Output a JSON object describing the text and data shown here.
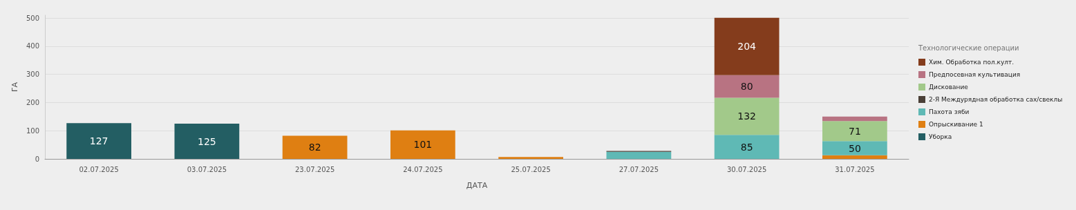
{
  "chart_data": {
    "type": "bar",
    "stacked": true,
    "xlabel": "ДАТА",
    "ylabel": "ГА",
    "legend_title": "Технологические операции",
    "categories": [
      "02.07.2025",
      "03.07.2025",
      "23.07.2025",
      "24.07.2025",
      "25.07.2025",
      "27.07.2025",
      "30.07.2025",
      "31.07.2025"
    ],
    "series": [
      {
        "name": "Уборка",
        "color": "#235e63",
        "values": [
          127,
          125,
          null,
          null,
          null,
          null,
          null,
          null
        ],
        "value_labels": [
          "127",
          "125",
          null,
          null,
          null,
          null,
          null,
          null
        ]
      },
      {
        "name": "Опрыскивание 1",
        "color": "#df7f12",
        "values": [
          null,
          null,
          82,
          101,
          7,
          null,
          null,
          13
        ],
        "value_labels": [
          null,
          null,
          "82",
          "101",
          null,
          null,
          null,
          null
        ]
      },
      {
        "name": "Пахота зяби",
        "color": "#5fb9b5",
        "values": [
          null,
          null,
          null,
          null,
          null,
          25,
          85,
          50
        ],
        "value_labels": [
          null,
          null,
          null,
          null,
          null,
          null,
          "85",
          "50"
        ]
      },
      {
        "name": "2-Я Междурядная обработка сах/свеклы",
        "color": "#4a3f37",
        "values": [
          null,
          null,
          null,
          null,
          null,
          3,
          null,
          null
        ],
        "value_labels": [
          null,
          null,
          null,
          null,
          null,
          null,
          null,
          null
        ]
      },
      {
        "name": "Дискование",
        "color": "#a2c98a",
        "values": [
          null,
          null,
          null,
          null,
          null,
          null,
          132,
          71
        ],
        "value_labels": [
          null,
          null,
          null,
          null,
          null,
          null,
          "132",
          "71"
        ]
      },
      {
        "name": "Предпосевная культивация",
        "color": "#b87382",
        "values": [
          null,
          null,
          null,
          null,
          null,
          null,
          80,
          16
        ],
        "value_labels": [
          null,
          null,
          null,
          null,
          null,
          null,
          "80",
          null
        ]
      },
      {
        "name": "Хим. Обработка пол.култ.",
        "color": "#843c1c",
        "values": [
          null,
          null,
          null,
          null,
          null,
          null,
          204,
          null
        ],
        "value_labels": [
          null,
          null,
          null,
          null,
          null,
          null,
          "204",
          null
        ]
      }
    ],
    "ylim": [
      0,
      510
    ],
    "yticks": [
      0,
      100,
      200,
      300,
      400,
      500
    ],
    "grid": "y",
    "legend": "right"
  }
}
